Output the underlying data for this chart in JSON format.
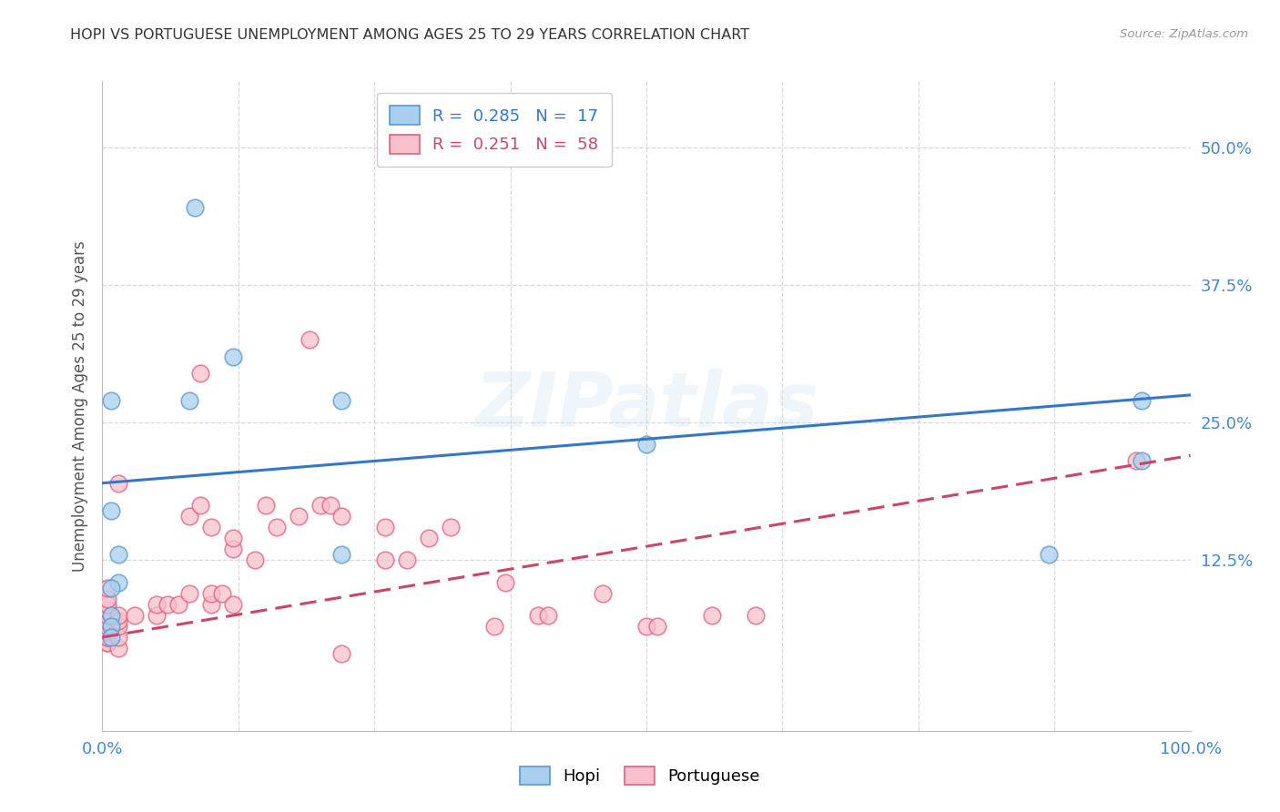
{
  "title": "HOPI VS PORTUGUESE UNEMPLOYMENT AMONG AGES 25 TO 29 YEARS CORRELATION CHART",
  "source": "Source: ZipAtlas.com",
  "ylabel": "Unemployment Among Ages 25 to 29 years",
  "xlim": [
    0.0,
    1.0
  ],
  "ylim": [
    -0.03,
    0.56
  ],
  "xticks": [
    0.0,
    0.125,
    0.25,
    0.375,
    0.5,
    0.625,
    0.75,
    0.875,
    1.0
  ],
  "xticklabels": [
    "0.0%",
    "",
    "",
    "",
    "",
    "",
    "",
    "",
    "100.0%"
  ],
  "yticks_right": [
    0.0,
    0.125,
    0.25,
    0.375,
    0.5
  ],
  "yticklabels_right": [
    "",
    "12.5%",
    "25.0%",
    "37.5%",
    "50.0%"
  ],
  "hopi_fill_color": "#aacfee",
  "hopi_edge_color": "#5599cc",
  "portuguese_fill_color": "#f8c0cc",
  "portuguese_edge_color": "#e06080",
  "hopi_line_color": "#3377cc",
  "portuguese_line_color": "#cc4466",
  "legend_hopi_R": "0.285",
  "legend_hopi_N": "17",
  "legend_portuguese_R": "0.251",
  "legend_portuguese_N": "58",
  "watermark_text": "ZIPatlas",
  "hopi_scatter_x": [
    0.015,
    0.015,
    0.008,
    0.008,
    0.008,
    0.008,
    0.008,
    0.008,
    0.08,
    0.085,
    0.12,
    0.22,
    0.22,
    0.5,
    0.87,
    0.955,
    0.955
  ],
  "hopi_scatter_y": [
    0.13,
    0.105,
    0.075,
    0.065,
    0.055,
    0.1,
    0.17,
    0.27,
    0.27,
    0.445,
    0.31,
    0.27,
    0.13,
    0.23,
    0.13,
    0.27,
    0.215
  ],
  "portuguese_scatter_x": [
    0.005,
    0.005,
    0.005,
    0.005,
    0.005,
    0.005,
    0.005,
    0.005,
    0.005,
    0.005,
    0.005,
    0.005,
    0.015,
    0.015,
    0.015,
    0.015,
    0.015,
    0.015,
    0.03,
    0.05,
    0.05,
    0.06,
    0.07,
    0.08,
    0.08,
    0.09,
    0.09,
    0.1,
    0.1,
    0.1,
    0.11,
    0.12,
    0.12,
    0.12,
    0.14,
    0.15,
    0.16,
    0.18,
    0.19,
    0.2,
    0.21,
    0.22,
    0.22,
    0.26,
    0.26,
    0.28,
    0.3,
    0.32,
    0.36,
    0.37,
    0.4,
    0.41,
    0.46,
    0.5,
    0.51,
    0.56,
    0.6,
    0.95
  ],
  "portuguese_scatter_y": [
    0.05,
    0.05,
    0.055,
    0.055,
    0.06,
    0.065,
    0.07,
    0.075,
    0.08,
    0.085,
    0.09,
    0.1,
    0.045,
    0.055,
    0.065,
    0.07,
    0.075,
    0.195,
    0.075,
    0.075,
    0.085,
    0.085,
    0.085,
    0.095,
    0.165,
    0.175,
    0.295,
    0.085,
    0.095,
    0.155,
    0.095,
    0.085,
    0.135,
    0.145,
    0.125,
    0.175,
    0.155,
    0.165,
    0.325,
    0.175,
    0.175,
    0.165,
    0.04,
    0.125,
    0.155,
    0.125,
    0.145,
    0.155,
    0.065,
    0.105,
    0.075,
    0.075,
    0.095,
    0.065,
    0.065,
    0.075,
    0.075,
    0.215
  ],
  "hopi_trendline_x": [
    0.0,
    1.0
  ],
  "hopi_trendline_y": [
    0.195,
    0.275
  ],
  "portuguese_trendline_x": [
    0.0,
    1.0
  ],
  "portuguese_trendline_y": [
    0.055,
    0.22
  ],
  "background_color": "#ffffff",
  "grid_color": "#d8d8d8",
  "title_color": "#333333",
  "axis_label_color": "#555555",
  "tick_color": "#4488cc",
  "marker_size": 180,
  "marker_alpha": 0.75,
  "marker_linewidth": 1.2
}
